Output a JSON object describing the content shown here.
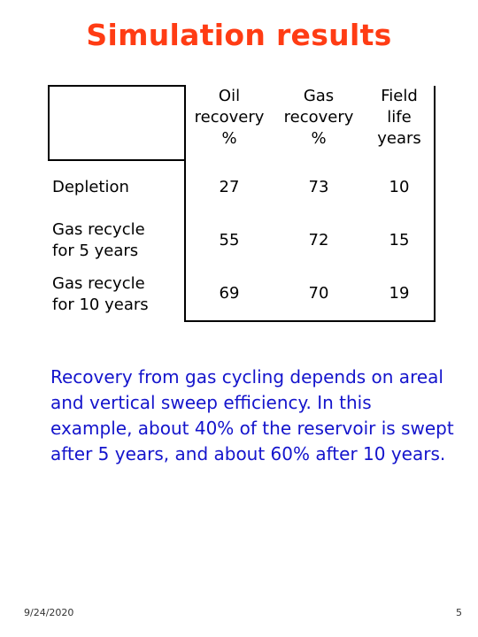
{
  "title": "Simulation results",
  "table": {
    "headers": [
      [
        "Oil",
        "recovery",
        "%"
      ],
      [
        "Gas",
        "recovery",
        "%"
      ],
      [
        "Field",
        "life",
        "years"
      ]
    ],
    "rows": [
      {
        "label": [
          "Depletion"
        ],
        "values": [
          "27",
          "73",
          "10"
        ]
      },
      {
        "label": [
          "Gas recycle",
          "for 5 years"
        ],
        "values": [
          "55",
          "72",
          "15"
        ]
      },
      {
        "label": [
          "Gas recycle",
          "for 10 years"
        ],
        "values": [
          "69",
          "70",
          "19"
        ]
      }
    ]
  },
  "paragraph": "Recovery from gas cycling depends on areal and vertical sweep efficiency.  In this example, about 40% of the reservoir is swept after 5 years, and about 60% after 10 years.",
  "footer": {
    "date": "9/24/2020",
    "page": "5"
  },
  "colors": {
    "title": "#ff3c14",
    "paragraph": "#1414cc"
  }
}
